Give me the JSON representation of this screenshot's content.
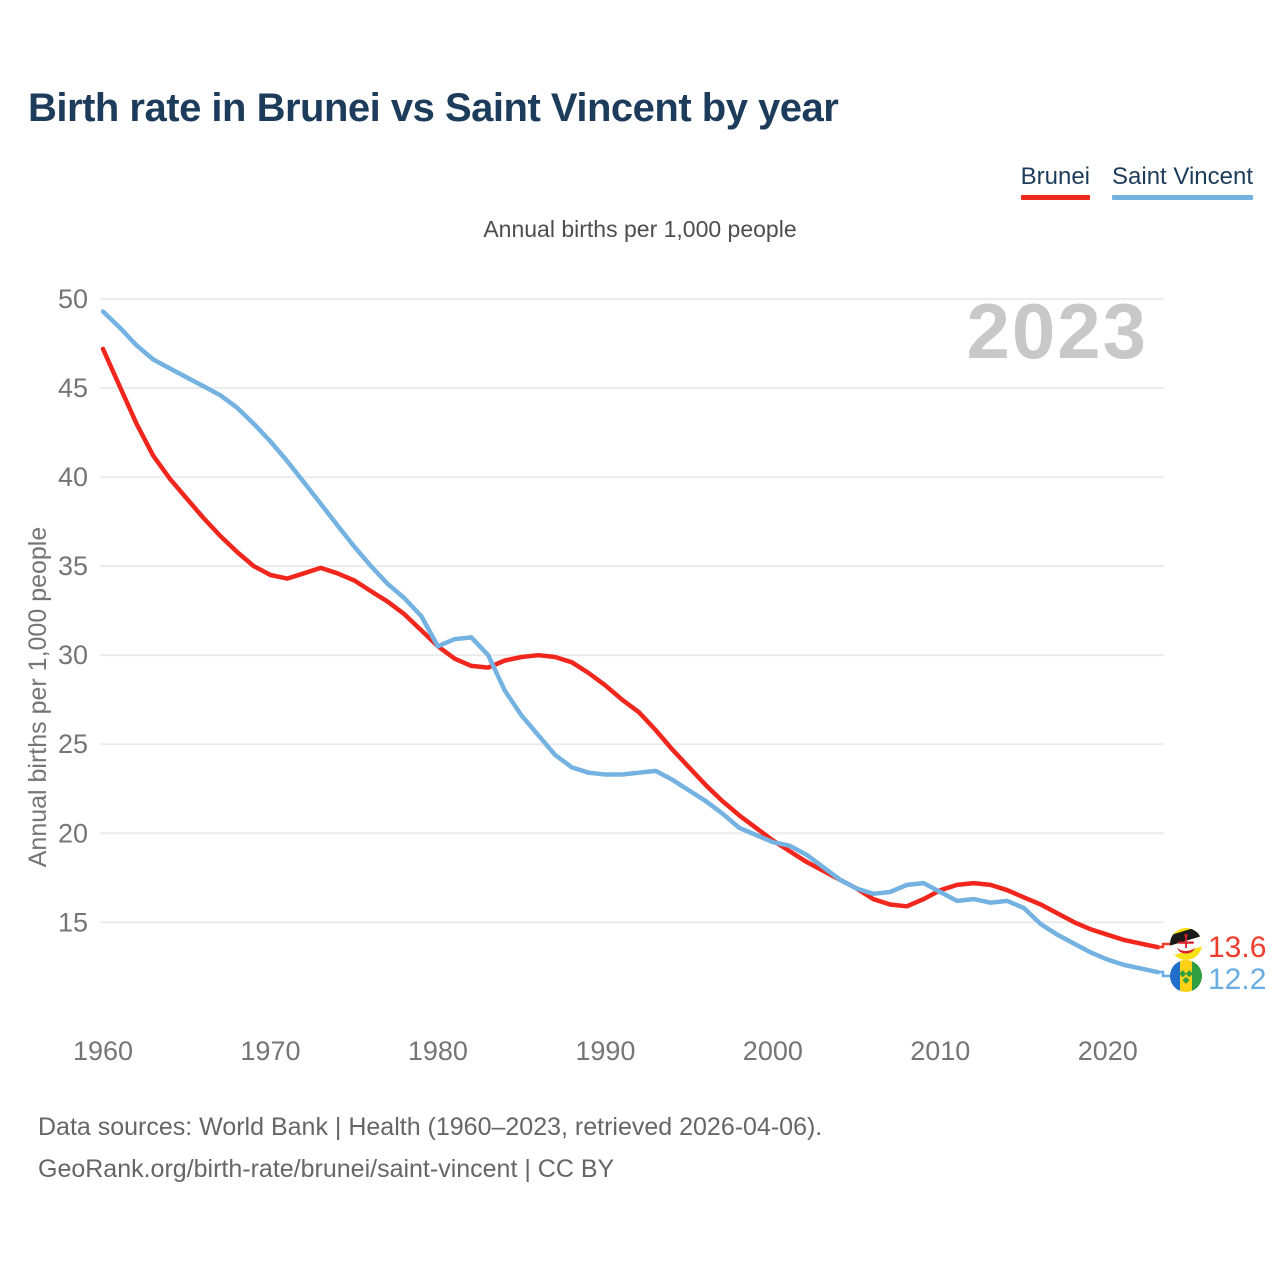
{
  "header": {
    "title": "Birth rate in Brunei vs Saint Vincent by year"
  },
  "legend": {
    "items": [
      {
        "label": "Brunei",
        "color": "#ee2a1e"
      },
      {
        "label": "Saint Vincent",
        "color": "#74b2e2"
      }
    ]
  },
  "subtitle": "Annual births per 1,000 people",
  "watermark": "2023",
  "chart_data": {
    "type": "line",
    "title": "Birth rate in Brunei vs Saint Vincent by year",
    "ylabel": "Annual births per 1,000 people",
    "xlabel": "",
    "grid": true,
    "legend_position": "top-right",
    "xlim": [
      1960,
      2023
    ],
    "ylim": [
      15,
      50
    ],
    "xticks": [
      1960,
      1970,
      1980,
      1990,
      2000,
      2010,
      2020
    ],
    "yticks": [
      15,
      20,
      25,
      30,
      35,
      40,
      45,
      50
    ],
    "x": [
      1960,
      1961,
      1962,
      1963,
      1964,
      1965,
      1966,
      1967,
      1968,
      1969,
      1970,
      1971,
      1972,
      1973,
      1974,
      1975,
      1976,
      1977,
      1978,
      1979,
      1980,
      1981,
      1982,
      1983,
      1984,
      1985,
      1986,
      1987,
      1988,
      1989,
      1990,
      1991,
      1992,
      1993,
      1994,
      1995,
      1996,
      1997,
      1998,
      1999,
      2000,
      2001,
      2002,
      2003,
      2004,
      2005,
      2006,
      2007,
      2008,
      2009,
      2010,
      2011,
      2012,
      2013,
      2014,
      2015,
      2016,
      2017,
      2018,
      2019,
      2020,
      2021,
      2022,
      2023
    ],
    "series": [
      {
        "name": "Brunei",
        "color": "#f1261d",
        "values": [
          47.2,
          45.1,
          43.0,
          41.2,
          39.9,
          38.8,
          37.7,
          36.7,
          35.8,
          35.0,
          34.5,
          34.3,
          34.6,
          34.9,
          34.6,
          34.2,
          33.6,
          33.0,
          32.3,
          31.4,
          30.5,
          29.8,
          29.4,
          29.3,
          29.7,
          29.9,
          30.0,
          29.9,
          29.6,
          29.0,
          28.3,
          27.5,
          26.8,
          25.8,
          24.7,
          23.7,
          22.7,
          21.8,
          21.0,
          20.3,
          19.6,
          19.0,
          18.4,
          17.9,
          17.4,
          16.9,
          16.3,
          16.0,
          15.9,
          16.3,
          16.8,
          17.1,
          17.2,
          17.1,
          16.8,
          16.4,
          16.0,
          15.5,
          15.0,
          14.6,
          14.3,
          14.0,
          13.8,
          13.6
        ]
      },
      {
        "name": "Saint Vincent",
        "color": "#74b2e2",
        "values": [
          49.3,
          48.4,
          47.4,
          46.6,
          46.1,
          45.6,
          45.1,
          44.6,
          43.9,
          43.0,
          42.0,
          40.9,
          39.7,
          38.5,
          37.3,
          36.1,
          35.0,
          34.0,
          33.2,
          32.2,
          30.5,
          30.9,
          31.0,
          30.0,
          28.0,
          26.6,
          25.5,
          24.4,
          23.7,
          23.4,
          23.3,
          23.3,
          23.4,
          23.5,
          23.0,
          22.4,
          21.8,
          21.1,
          20.3,
          19.9,
          19.5,
          19.3,
          18.8,
          18.1,
          17.4,
          16.9,
          16.6,
          16.7,
          17.1,
          17.2,
          16.7,
          16.2,
          16.3,
          16.1,
          16.2,
          15.8,
          14.9,
          14.3,
          13.8,
          13.3,
          12.9,
          12.6,
          12.4,
          12.2
        ]
      }
    ]
  },
  "end_labels": [
    {
      "series": "Brunei",
      "value": "13.6",
      "color": "#ef3c2d",
      "icon": "brunei-flag-icon"
    },
    {
      "series": "Saint Vincent",
      "value": "12.2",
      "color": "#6aade4",
      "icon": "saint-vincent-flag-icon"
    }
  ],
  "footer": {
    "line1": "Data sources: World Bank | Health (1960–2023, retrieved 2026-04-06).",
    "line2": "GeoRank.org/birth-rate/brunei/saint-vincent | CC BY"
  },
  "colors": {
    "title": "#1d3b5a",
    "axis_text": "#757575",
    "grid": "#ececec",
    "watermark": "#c8c8c8",
    "footer_text": "#666666"
  }
}
